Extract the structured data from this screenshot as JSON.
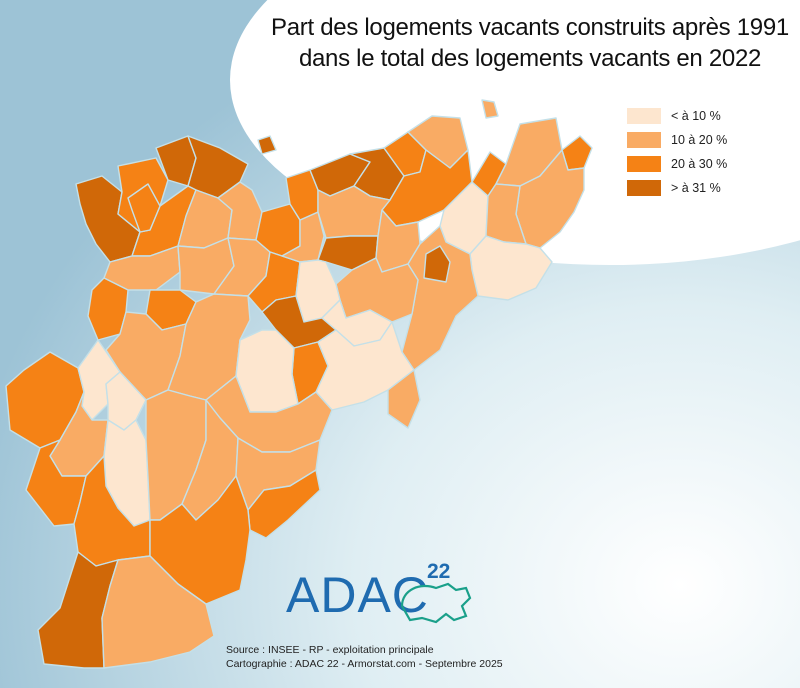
{
  "title_line1": "Part des logements vacants construits après 1991",
  "title_line2": "dans le total des logements vacants en 2022",
  "legend": [
    {
      "label": "< à 10 %",
      "color": "#fde6cf"
    },
    {
      "label": "10 à 20 %",
      "color": "#f9ab64"
    },
    {
      "label": "20 à 30 %",
      "color": "#f58215"
    },
    {
      "label": "> à 31 %",
      "color": "#d06808"
    }
  ],
  "border_color": "#c4e0e8",
  "logo": {
    "text": "ADAC",
    "superscript": "22",
    "color": "#1f6bb0"
  },
  "source_line1": "Source : INSEE - RP - exploitation principale",
  "source_line2": "Cartographie : ADAC 22 - Armorstat.com - Septembre 2025"
}
